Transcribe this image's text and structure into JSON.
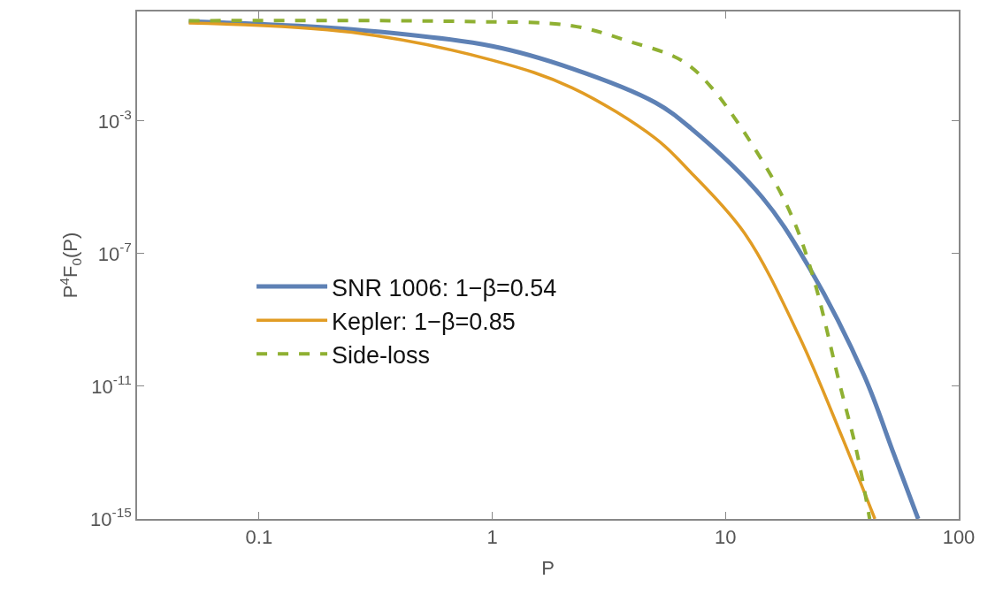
{
  "chart_data": {
    "type": "line",
    "xlabel": "P",
    "ylabel": "P$^{4}$F$_{0}$(P)",
    "log": "xy",
    "legend": "left",
    "marker": "none",
    "xlim": [
      0.03,
      100
    ],
    "xticks": [
      0.1,
      1,
      10,
      100
    ],
    "ylim": [
      1e-15,
      2
    ],
    "yticks": [
      {
        "value": 0.001,
        "label": "10$^{-3}$"
      },
      {
        "value": 1e-07,
        "label": "10$^{-7}$"
      },
      {
        "value": 1e-11,
        "label": "10$^{-11}$"
      },
      {
        "value": 1e-15,
        "label": "10$^{-15}$"
      }
    ],
    "series": [
      {
        "name": "SNR 1006: 1−β=0.54",
        "color": "#5e81b5",
        "line_style": "solid",
        "x": [
          0.05,
          0.25,
          1,
          2.2,
          5,
          7.07,
          14.4,
          23,
          39.3,
          52.4,
          67
        ],
        "values": [
          1,
          0.58,
          0.18,
          0.038,
          0.0036,
          0.00062,
          4.9e-06,
          3.5e-08,
          2.1e-11,
          1e-13,
          1e-15
        ]
      },
      {
        "name": "Kepler: 1−β=0.85",
        "color": "#e19c24",
        "line_style": "solid",
        "x": [
          0.05,
          0.25,
          1,
          2.2,
          5,
          7.07,
          12.1,
          20.7,
          31.7,
          43.7
        ],
        "values": [
          0.9,
          0.47,
          0.068,
          0.01,
          0.0003,
          2.9e-05,
          4e-07,
          3.2e-10,
          2.8e-13,
          1e-15
        ]
      },
      {
        "name": "Side-loss",
        "color": "#8fb032",
        "line_style": "dashed",
        "x": [
          0.05,
          0.75,
          2.2,
          3.8,
          6.5,
          8.75,
          14.4,
          19.2,
          23.8,
          30.6,
          36.6,
          41.5
        ],
        "values": [
          1.05,
          1.0,
          0.74,
          0.26,
          0.066,
          0.0098,
          6.2e-05,
          1.4e-06,
          1.9e-08,
          1.5e-11,
          1e-13,
          1e-15
        ]
      }
    ]
  }
}
